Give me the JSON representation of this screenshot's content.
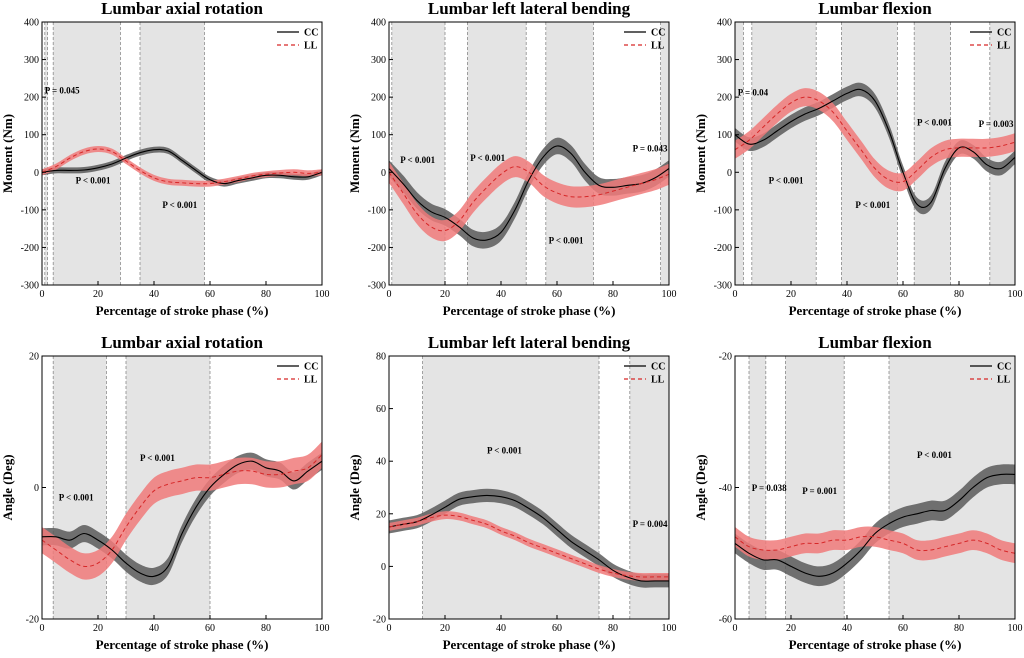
{
  "figure": {
    "colors": {
      "cc": "#000000",
      "cc_band": "#5a5a5a",
      "ll": "#d62728",
      "ll_band": "#f07a7a",
      "shade": "#e4e4e4"
    }
  },
  "chart_data": [
    {
      "type": "line",
      "title": "Lumbar axial rotation",
      "xlabel": "Percentage of stroke phase (%)",
      "ylabel": "Moment (Nm)",
      "xlim": [
        0,
        100
      ],
      "ylim": [
        -300,
        400
      ],
      "xticks": [
        0,
        20,
        40,
        60,
        80,
        100
      ],
      "yticks": [
        -300,
        -200,
        -100,
        0,
        100,
        200,
        300,
        400
      ],
      "legend": [
        "CC",
        "LL"
      ],
      "shaded_regions": [
        [
          1,
          2
        ],
        [
          4,
          28
        ],
        [
          35,
          58
        ]
      ],
      "annotations": [
        {
          "text": "P = 0.045",
          "x": 1,
          "y": 210
        },
        {
          "text": "P < 0.001",
          "x": 12,
          "y": -30
        },
        {
          "text": "P < 0.001",
          "x": 43,
          "y": -95
        }
      ],
      "series": [
        {
          "name": "CC",
          "x": [
            0,
            5,
            10,
            15,
            20,
            25,
            30,
            35,
            40,
            45,
            50,
            55,
            60,
            65,
            70,
            75,
            80,
            85,
            90,
            95,
            100
          ],
          "y": [
            0,
            5,
            5,
            6,
            12,
            22,
            38,
            52,
            60,
            57,
            32,
            5,
            -20,
            -30,
            -22,
            -15,
            -8,
            -8,
            -12,
            -12,
            0
          ],
          "band": 8
        },
        {
          "name": "LL",
          "x": [
            0,
            5,
            10,
            15,
            20,
            25,
            30,
            35,
            40,
            45,
            50,
            55,
            60,
            65,
            70,
            75,
            80,
            85,
            90,
            95,
            100
          ],
          "y": [
            0,
            15,
            38,
            55,
            62,
            55,
            30,
            5,
            -15,
            -25,
            -28,
            -30,
            -30,
            -25,
            -18,
            -10,
            -5,
            -2,
            0,
            -3,
            0
          ],
          "band": 8
        }
      ]
    },
    {
      "type": "line",
      "title": "Lumbar left lateral bending",
      "xlabel": "Percentage of stroke phase (%)",
      "ylabel": "Moment (Nm)",
      "xlim": [
        0,
        100
      ],
      "ylim": [
        -300,
        400
      ],
      "xticks": [
        0,
        20,
        40,
        60,
        80,
        100
      ],
      "yticks": [
        -300,
        -200,
        -100,
        0,
        100,
        200,
        300,
        400
      ],
      "legend": [
        "CC",
        "LL"
      ],
      "shaded_regions": [
        [
          1,
          20
        ],
        [
          28,
          49
        ],
        [
          56,
          73
        ],
        [
          97,
          100
        ]
      ],
      "annotations": [
        {
          "text": "P < 0.001",
          "x": 4,
          "y": 25
        },
        {
          "text": "P < 0.001",
          "x": 29,
          "y": 30
        },
        {
          "text": "P < 0.001",
          "x": 57,
          "y": -190
        },
        {
          "text": "P = 0.043",
          "x": 87,
          "y": 55
        }
      ],
      "series": [
        {
          "name": "CC",
          "x": [
            0,
            5,
            10,
            15,
            20,
            25,
            30,
            35,
            40,
            45,
            50,
            55,
            60,
            65,
            70,
            75,
            80,
            85,
            90,
            95,
            100
          ],
          "y": [
            10,
            -30,
            -75,
            -105,
            -120,
            -145,
            -175,
            -180,
            -160,
            -100,
            -20,
            40,
            70,
            50,
            0,
            -35,
            -40,
            -35,
            -30,
            -15,
            10
          ],
          "band": 22
        },
        {
          "name": "LL",
          "x": [
            0,
            5,
            10,
            15,
            20,
            25,
            30,
            35,
            40,
            45,
            50,
            55,
            60,
            65,
            70,
            75,
            80,
            85,
            90,
            95,
            100
          ],
          "y": [
            0,
            -55,
            -110,
            -145,
            -155,
            -130,
            -80,
            -40,
            -5,
            15,
            0,
            -35,
            -55,
            -65,
            -65,
            -60,
            -50,
            -40,
            -30,
            -20,
            -5
          ],
          "band": 28
        }
      ]
    },
    {
      "type": "line",
      "title": "Lumbar flexion",
      "xlabel": "Percentage of stroke phase (%)",
      "ylabel": "Moment (Nm)",
      "xlim": [
        0,
        100
      ],
      "ylim": [
        -300,
        400
      ],
      "xticks": [
        0,
        20,
        40,
        60,
        80,
        100
      ],
      "yticks": [
        -300,
        -200,
        -100,
        0,
        100,
        200,
        300,
        400
      ],
      "legend": [
        "CC",
        "LL"
      ],
      "shaded_regions": [
        [
          0,
          3
        ],
        [
          6,
          29
        ],
        [
          38,
          58
        ],
        [
          64,
          77
        ],
        [
          91,
          100
        ]
      ],
      "annotations": [
        {
          "text": "P = 0.04",
          "x": 1,
          "y": 205
        },
        {
          "text": "P < 0.001",
          "x": 12,
          "y": -30
        },
        {
          "text": "P < 0.001",
          "x": 43,
          "y": -95
        },
        {
          "text": "P < 0.001",
          "x": 65,
          "y": 125
        },
        {
          "text": "P = 0.003",
          "x": 87,
          "y": 120
        }
      ],
      "series": [
        {
          "name": "CC",
          "x": [
            0,
            5,
            10,
            15,
            20,
            25,
            30,
            35,
            40,
            45,
            50,
            55,
            60,
            65,
            70,
            75,
            80,
            85,
            90,
            95,
            100
          ],
          "y": [
            100,
            75,
            85,
            110,
            135,
            155,
            170,
            190,
            210,
            220,
            190,
            110,
            0,
            -85,
            -80,
            10,
            65,
            55,
            20,
            10,
            40
          ],
          "band": 18
        },
        {
          "name": "LL",
          "x": [
            0,
            5,
            10,
            15,
            20,
            25,
            30,
            35,
            40,
            45,
            50,
            55,
            60,
            65,
            70,
            75,
            80,
            85,
            90,
            95,
            100
          ],
          "y": [
            60,
            85,
            120,
            155,
            185,
            200,
            190,
            160,
            110,
            60,
            10,
            -20,
            -25,
            5,
            40,
            60,
            65,
            65,
            65,
            70,
            80
          ],
          "band": 24
        }
      ]
    },
    {
      "type": "line",
      "title": "Lumbar axial rotation",
      "xlabel": "Percentage of stroke phase (%)",
      "ylabel": "Angle (Deg)",
      "xlim": [
        0,
        100
      ],
      "ylim": [
        -20,
        20
      ],
      "xticks": [
        0,
        20,
        40,
        60,
        80,
        100
      ],
      "yticks": [
        -20,
        0,
        20
      ],
      "legend": [
        "CC",
        "LL"
      ],
      "shaded_regions": [
        [
          4,
          23
        ],
        [
          30,
          60
        ]
      ],
      "annotations": [
        {
          "text": "P < 0.001",
          "x": 6,
          "y": -2
        },
        {
          "text": "P < 0.001",
          "x": 35,
          "y": 4
        }
      ],
      "series": [
        {
          "name": "CC",
          "x": [
            0,
            5,
            10,
            15,
            20,
            25,
            30,
            35,
            40,
            45,
            50,
            55,
            60,
            65,
            70,
            75,
            80,
            85,
            90,
            95,
            100
          ],
          "y": [
            -7.5,
            -7.5,
            -8,
            -7,
            -8,
            -9.5,
            -11.5,
            -13,
            -13.5,
            -12,
            -7,
            -3,
            0,
            2,
            3.5,
            4,
            3,
            2.5,
            1,
            2.5,
            4
          ],
          "band": 1.3
        },
        {
          "name": "LL",
          "x": [
            0,
            5,
            10,
            15,
            20,
            25,
            30,
            35,
            40,
            45,
            50,
            55,
            60,
            65,
            70,
            75,
            80,
            85,
            90,
            95,
            100
          ],
          "y": [
            -8,
            -9.5,
            -11,
            -12,
            -11.5,
            -9.5,
            -6,
            -3,
            -0.5,
            0.5,
            1,
            1.5,
            1.5,
            2,
            2.5,
            2.5,
            2,
            2,
            2.5,
            3,
            5
          ],
          "band": 2
        }
      ]
    },
    {
      "type": "line",
      "title": "Lumbar left lateral bending",
      "xlabel": "Percentage of stroke phase (%)",
      "ylabel": "Angle (Deg)",
      "xlim": [
        0,
        100
      ],
      "ylim": [
        -20,
        80
      ],
      "xticks": [
        0,
        20,
        40,
        60,
        80,
        100
      ],
      "yticks": [
        -20,
        0,
        20,
        40,
        60,
        80
      ],
      "legend": [
        "CC",
        "LL"
      ],
      "shaded_regions": [
        [
          12,
          75
        ],
        [
          86,
          100
        ]
      ],
      "annotations": [
        {
          "text": "P < 0.001",
          "x": 35,
          "y": 43
        },
        {
          "text": "P = 0.004",
          "x": 87,
          "y": 15
        }
      ],
      "series": [
        {
          "name": "CC",
          "x": [
            0,
            5,
            10,
            15,
            20,
            25,
            30,
            35,
            40,
            45,
            50,
            55,
            60,
            65,
            70,
            75,
            80,
            85,
            90,
            95,
            100
          ],
          "y": [
            15,
            16,
            17,
            19.5,
            22.5,
            25.5,
            26.5,
            27,
            26.5,
            25,
            22,
            18.5,
            14,
            9.5,
            6,
            2.5,
            -1.5,
            -4,
            -5.5,
            -5.5,
            -5.5
          ],
          "band": 2.5
        },
        {
          "name": "LL",
          "x": [
            0,
            5,
            10,
            15,
            20,
            25,
            30,
            35,
            40,
            45,
            50,
            55,
            60,
            65,
            70,
            75,
            80,
            85,
            90,
            95,
            100
          ],
          "y": [
            15,
            16,
            17,
            18.5,
            19.5,
            19,
            17.5,
            16,
            13.5,
            11.5,
            9,
            7,
            5,
            3,
            1,
            -1,
            -2.5,
            -3.5,
            -4,
            -4,
            -4
          ],
          "band": 1.5
        }
      ]
    },
    {
      "type": "line",
      "title": "Lumbar flexion",
      "xlabel": "Percentage of stroke phase (%)",
      "ylabel": "Angle (Deg)",
      "xlim": [
        0,
        100
      ],
      "ylim": [
        -60,
        -20
      ],
      "xticks": [
        0,
        20,
        40,
        60,
        80,
        100
      ],
      "yticks": [
        -60,
        -40,
        -20
      ],
      "legend": [
        "CC",
        "LL"
      ],
      "shaded_regions": [
        [
          5,
          11
        ],
        [
          18,
          39
        ],
        [
          55,
          100
        ]
      ],
      "annotations": [
        {
          "text": "P = 0.038",
          "x": 6,
          "y": -40.5
        },
        {
          "text": "P = 0.001",
          "x": 24,
          "y": -41
        },
        {
          "text": "P < 0.001",
          "x": 65,
          "y": -35.5
        }
      ],
      "series": [
        {
          "name": "CC",
          "x": [
            0,
            5,
            10,
            15,
            20,
            25,
            30,
            35,
            40,
            45,
            50,
            55,
            60,
            65,
            70,
            75,
            80,
            85,
            90,
            95,
            100
          ],
          "y": [
            -48.5,
            -50,
            -51,
            -51,
            -52,
            -53,
            -53.5,
            -53,
            -51.5,
            -49.5,
            -47,
            -45.5,
            -44.5,
            -44,
            -43.5,
            -43.5,
            -42,
            -40,
            -38.5,
            -38,
            -38
          ],
          "band": 1.5
        },
        {
          "name": "LL",
          "x": [
            0,
            5,
            10,
            15,
            20,
            25,
            30,
            35,
            40,
            45,
            50,
            55,
            60,
            65,
            70,
            75,
            80,
            85,
            90,
            95,
            100
          ],
          "y": [
            -47.5,
            -49,
            -49.5,
            -49.5,
            -49,
            -48.5,
            -48.5,
            -48,
            -48,
            -47.5,
            -47.5,
            -48,
            -48.5,
            -49.5,
            -49.5,
            -49,
            -48.5,
            -48,
            -48.5,
            -49.5,
            -50
          ],
          "band": 1.5
        }
      ]
    }
  ]
}
